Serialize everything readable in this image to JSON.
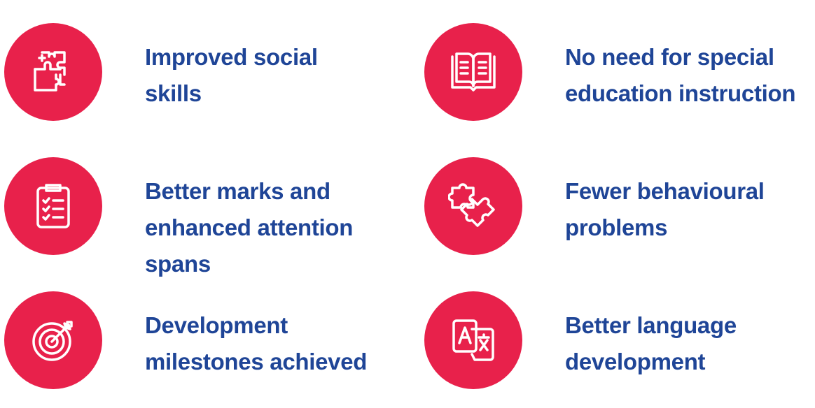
{
  "colors": {
    "circle": "#e8214b",
    "text": "#1f4597",
    "background": "#ffffff"
  },
  "benefits": [
    {
      "icon": "puzzle-brain-icon",
      "lines": [
        "Improved social",
        "skills"
      ]
    },
    {
      "icon": "open-book-icon",
      "lines": [
        "No need for special",
        "education instruction"
      ]
    },
    {
      "icon": "checklist-clipboard-icon",
      "lines": [
        "Better marks and",
        "enhanced attention",
        "spans"
      ]
    },
    {
      "icon": "puzzle-pieces-icon",
      "lines": [
        "Fewer behavioural",
        "problems"
      ]
    },
    {
      "icon": "target-arrow-icon",
      "lines": [
        "Development",
        "milestones achieved"
      ]
    },
    {
      "icon": "translate-icon",
      "lines": [
        "Better language",
        "development"
      ]
    }
  ]
}
